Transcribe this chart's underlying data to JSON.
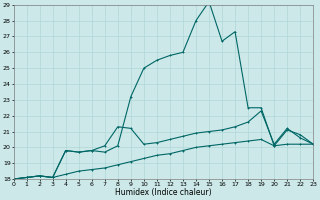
{
  "xlabel": "Humidex (Indice chaleur)",
  "bg_color": "#cce8e8",
  "line_color": "#006666",
  "grid_color": "#b0d8d8",
  "ylim": [
    18,
    29
  ],
  "xlim": [
    0,
    23
  ],
  "yticks": [
    18,
    19,
    20,
    21,
    22,
    23,
    24,
    25,
    26,
    27,
    28,
    29
  ],
  "xticks": [
    0,
    1,
    2,
    3,
    4,
    5,
    6,
    7,
    8,
    9,
    10,
    11,
    12,
    13,
    14,
    15,
    16,
    17,
    18,
    19,
    20,
    21,
    22,
    23
  ],
  "line1_x": [
    0,
    1,
    2,
    3,
    4,
    5,
    6,
    7,
    8,
    9,
    10,
    11,
    12,
    13,
    14,
    15,
    16,
    17,
    18,
    19,
    20,
    21,
    22,
    23
  ],
  "line1_y": [
    18,
    18.1,
    18.2,
    18.1,
    19.8,
    19.7,
    19.8,
    19.7,
    20.1,
    23.2,
    25.0,
    25.5,
    25.8,
    26.0,
    28.0,
    29.2,
    26.7,
    27.3,
    22.5,
    22.5,
    20.1,
    21.1,
    20.8,
    20.2
  ],
  "line2_x": [
    0,
    1,
    2,
    3,
    4,
    5,
    6,
    7,
    8,
    9,
    10,
    11,
    12,
    13,
    14,
    15,
    16,
    17,
    18,
    19,
    20,
    21,
    22,
    23
  ],
  "line2_y": [
    18,
    18.1,
    18.2,
    18.1,
    19.8,
    19.7,
    19.8,
    20.1,
    21.3,
    21.2,
    20.2,
    20.3,
    20.5,
    20.7,
    20.9,
    21.0,
    21.1,
    21.3,
    21.6,
    22.3,
    20.2,
    21.2,
    20.6,
    20.2
  ],
  "line3_x": [
    0,
    1,
    2,
    3,
    4,
    5,
    6,
    7,
    8,
    9,
    10,
    11,
    12,
    13,
    14,
    15,
    16,
    17,
    18,
    19,
    20,
    21,
    22,
    23
  ],
  "line3_y": [
    18,
    18.1,
    18.2,
    18.1,
    18.3,
    18.5,
    18.6,
    18.7,
    18.9,
    19.1,
    19.3,
    19.5,
    19.6,
    19.8,
    20.0,
    20.1,
    20.2,
    20.3,
    20.4,
    20.5,
    20.1,
    20.2,
    20.2,
    20.2
  ]
}
